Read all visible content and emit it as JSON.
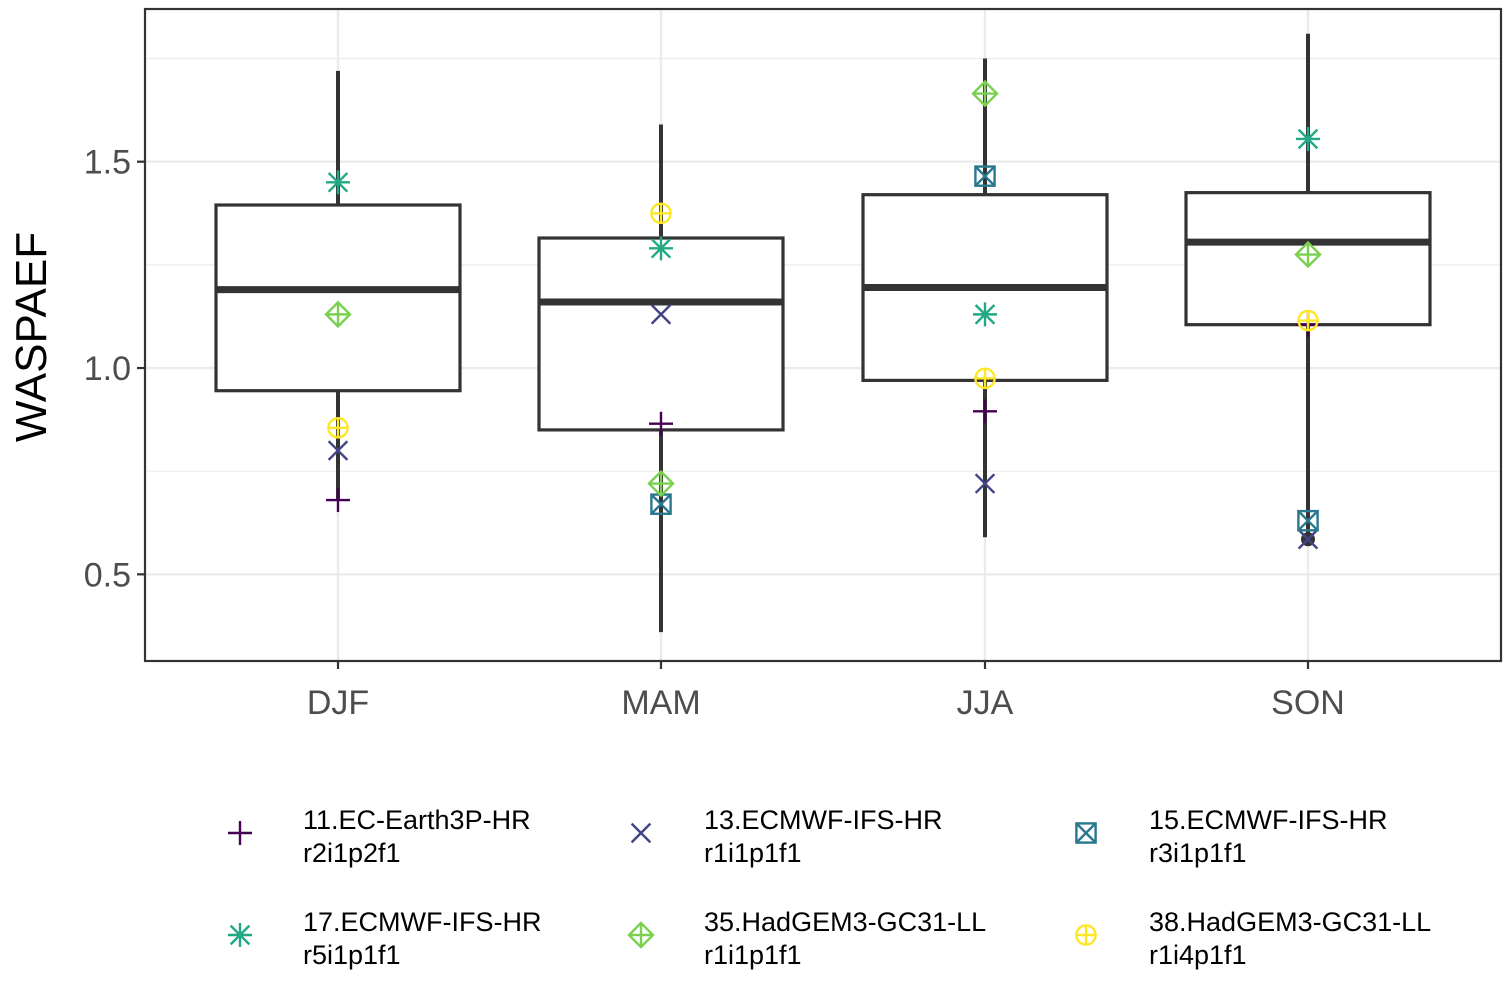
{
  "chart_data": {
    "type": "box",
    "title": "",
    "xlabel": "",
    "ylabel": "WASPAEF",
    "ylim": [
      0.29,
      1.87
    ],
    "yticks": [
      0.5,
      1.0,
      1.5
    ],
    "ytick_labels": [
      "0.5",
      "1.0",
      "1.5"
    ],
    "grid": true,
    "legend_position": "bottom",
    "categories": [
      "DJF",
      "MAM",
      "JJA",
      "SON"
    ],
    "boxes": [
      {
        "category": "DJF",
        "whisker_low": 0.68,
        "q1": 0.945,
        "median": 1.19,
        "q3": 1.395,
        "whisker_high": 1.72
      },
      {
        "category": "MAM",
        "whisker_low": 0.36,
        "q1": 0.85,
        "median": 1.16,
        "q3": 1.315,
        "whisker_high": 1.59
      },
      {
        "category": "JJA",
        "whisker_low": 0.59,
        "q1": 0.97,
        "median": 1.195,
        "q3": 1.42,
        "whisker_high": 1.75
      },
      {
        "category": "SON",
        "whisker_low": 0.585,
        "q1": 1.105,
        "median": 1.305,
        "q3": 1.425,
        "whisker_high": 1.81
      }
    ],
    "outliers": [
      {
        "category": "SON",
        "value": 0.585
      }
    ],
    "series": [
      {
        "name": "11.EC-Earth3P-HR",
        "member": "r2i1p2f1",
        "color": "#440154",
        "marker": "plus",
        "values": [
          0.68,
          0.865,
          0.895,
          1.105
        ]
      },
      {
        "name": "13.ECMWF-IFS-HR",
        "member": "r1i1p1f1",
        "color": "#414487",
        "marker": "cross",
        "values": [
          0.8,
          1.13,
          0.72,
          0.585
        ]
      },
      {
        "name": "15.ECMWF-IFS-HR",
        "member": "r3i1p1f1",
        "color": "#2a788e",
        "marker": "square-cross",
        "values": [
          null,
          0.67,
          1.465,
          0.63
        ]
      },
      {
        "name": "17.ECMWF-IFS-HR",
        "member": "r5i1p1f1",
        "color": "#22a884",
        "marker": "asterisk",
        "values": [
          1.45,
          1.29,
          1.13,
          1.555
        ]
      },
      {
        "name": "35.HadGEM3-GC31-LL",
        "member": "r1i1p1f1",
        "color": "#7ad151",
        "marker": "diamond-plus",
        "values": [
          1.13,
          0.72,
          1.665,
          1.275
        ]
      },
      {
        "name": "38.HadGEM3-GC31-LL",
        "member": "r1i4p1f1",
        "color": "#fde725",
        "marker": "circle-plus",
        "values": [
          0.855,
          1.375,
          0.975,
          1.115
        ]
      }
    ]
  }
}
